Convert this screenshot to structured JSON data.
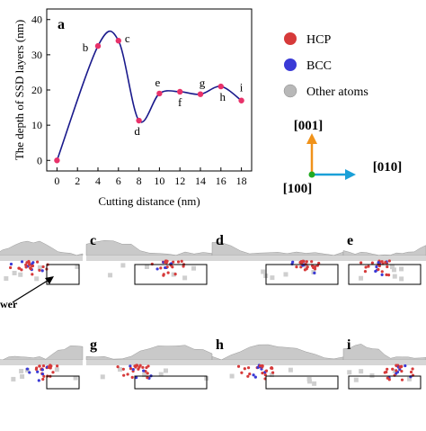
{
  "chart_data": {
    "type": "line",
    "panel_label": "a",
    "xlabel": "Cutting distance (nm)",
    "ylabel": "The depth of SSD layers (nm)",
    "xlim": [
      -1,
      19
    ],
    "ylim": [
      -3,
      43
    ],
    "xticks": [
      0,
      2,
      4,
      6,
      8,
      10,
      12,
      14,
      16,
      18
    ],
    "yticks": [
      0,
      10,
      20,
      30,
      40
    ],
    "grid": false,
    "series": [
      {
        "color": "#1a1a8c",
        "marker_color": "#e8326a",
        "x": [
          0,
          4,
          6,
          8,
          10,
          12,
          14,
          16,
          18
        ],
        "y": [
          0,
          32.5,
          34,
          11.3,
          19,
          19.5,
          18.8,
          21,
          17
        ],
        "point_labels": [
          "",
          "b",
          "c",
          "d",
          "e",
          "f",
          "g",
          "h",
          "i"
        ]
      }
    ]
  },
  "legend": {
    "items": [
      {
        "label": "HCP",
        "color": "#d63a3a"
      },
      {
        "label": "BCC",
        "color": "#3a3ad6"
      },
      {
        "label": "Other atoms",
        "color": "#b8b8b8"
      }
    ]
  },
  "axes_triad": {
    "z_label": "[001]",
    "y_label": "[010]",
    "x_label": "[100]",
    "z_color": "#f0921a",
    "y_color": "#1aa0d8",
    "origin_color": "#22aa22"
  },
  "snapshots": {
    "labels": [
      "c",
      "d",
      "e",
      "g",
      "h",
      "i"
    ],
    "callout_text": "wer"
  }
}
